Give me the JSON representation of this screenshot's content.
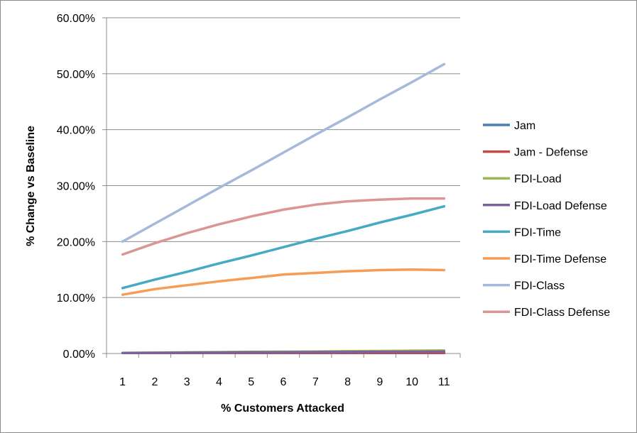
{
  "chart_data": {
    "type": "line",
    "title": "",
    "xlabel": "% Customers Attacked",
    "ylabel": "% Change vs Baseline",
    "ylim": [
      0,
      0.6
    ],
    "yticks": [
      0,
      0.1,
      0.2,
      0.3,
      0.4,
      0.5,
      0.6
    ],
    "ytick_labels": [
      "0.00%",
      "10.00%",
      "20.00%",
      "30.00%",
      "40.00%",
      "50.00%",
      "60.00%"
    ],
    "x": [
      1,
      2,
      3,
      4,
      5,
      6,
      7,
      8,
      9,
      10,
      11
    ],
    "x_labels": [
      "1",
      "2",
      "3",
      "4",
      "5",
      "6",
      "7",
      "8",
      "9",
      "10",
      "11"
    ],
    "grid": "horizontal",
    "legend_position": "right",
    "series": [
      {
        "name": "Jam",
        "color": "#4a7ebb",
        "values": [
          0.001,
          0.001,
          0.001,
          0.001,
          0.001,
          0.001,
          0.001,
          0.001,
          0.001,
          0.001,
          0.001
        ]
      },
      {
        "name": "Jam - Defense",
        "color": "#be4b48",
        "values": [
          0.001,
          0.001,
          0.001,
          0.001,
          0.001,
          0.001,
          0.001,
          0.001,
          0.001,
          0.001,
          0.001
        ]
      },
      {
        "name": "FDI-Load",
        "color": "#98b954",
        "values": [
          0.001,
          0.0015,
          0.002,
          0.0025,
          0.003,
          0.0032,
          0.0035,
          0.004,
          0.0045,
          0.005,
          0.0055
        ]
      },
      {
        "name": "FDI-Load Defense",
        "color": "#7d60a0",
        "values": [
          0.001,
          0.0012,
          0.0015,
          0.0017,
          0.002,
          0.0022,
          0.0025,
          0.0027,
          0.003,
          0.0032,
          0.0035
        ]
      },
      {
        "name": "FDI-Time",
        "color": "#46aac5",
        "values": [
          0.117,
          0.132,
          0.146,
          0.161,
          0.175,
          0.19,
          0.205,
          0.219,
          0.234,
          0.248,
          0.263
        ]
      },
      {
        "name": "FDI-Time Defense",
        "color": "#f59d56",
        "values": [
          0.105,
          0.115,
          0.122,
          0.129,
          0.135,
          0.141,
          0.144,
          0.147,
          0.149,
          0.15,
          0.149
        ]
      },
      {
        "name": "FDI-Class",
        "color": "#a5b9da",
        "values": [
          0.2,
          0.232,
          0.264,
          0.296,
          0.327,
          0.359,
          0.391,
          0.422,
          0.454,
          0.485,
          0.517
        ]
      },
      {
        "name": "FDI-Class Defense",
        "color": "#d99694",
        "values": [
          0.177,
          0.197,
          0.215,
          0.231,
          0.245,
          0.257,
          0.266,
          0.272,
          0.275,
          0.277,
          0.277
        ]
      }
    ]
  }
}
